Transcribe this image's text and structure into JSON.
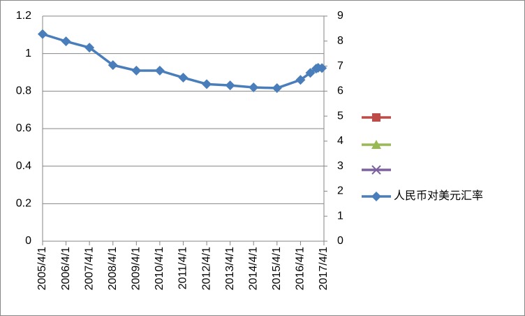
{
  "chart_data": {
    "type": "line",
    "x": [
      "2005/4/1",
      "2006/4/1",
      "2007/4/1",
      "2008/4/1",
      "2009/4/1",
      "2010/4/1",
      "2011/4/1",
      "2012/4/1",
      "2013/4/1",
      "2014/4/1",
      "2015/4/1",
      "2016/4/1",
      "2016/9/1",
      "2016/12/1",
      "2017/1/1",
      "2017/3/1"
    ],
    "xlim": [
      "2005/4/1",
      "2017/4/1"
    ],
    "xticks": [
      "2005/4/1",
      "2006/4/1",
      "2007/4/1",
      "2008/4/1",
      "2009/4/1",
      "2010/4/1",
      "2011/4/1",
      "2012/4/1",
      "2013/4/1",
      "2014/4/1",
      "2015/4/1",
      "2016/4/1",
      "2017/4/1"
    ],
    "ylim": [
      0,
      1.2
    ],
    "yticks": [
      0,
      0.2,
      0.4,
      0.6,
      0.8,
      1,
      1.2
    ],
    "y2lim": [
      0,
      9
    ],
    "y2ticks": [
      0,
      1,
      2,
      3,
      4,
      5,
      6,
      7,
      8,
      9
    ],
    "grid": true,
    "legend": "right",
    "series": [
      {
        "color": "#be4b48",
        "marker": "square",
        "values": [
          null,
          null,
          null,
          null,
          null,
          null,
          null,
          null,
          null,
          null,
          null,
          null,
          null,
          null,
          null,
          null
        ]
      },
      {
        "color": "#98b954",
        "marker": "triangle",
        "values": [
          null,
          null,
          null,
          null,
          null,
          null,
          null,
          null,
          null,
          null,
          null,
          null,
          null,
          null,
          null,
          null
        ]
      },
      {
        "color": "#7d60a0",
        "marker": "x",
        "values": [
          null,
          null,
          null,
          null,
          null,
          null,
          null,
          null,
          null,
          null,
          null,
          null,
          null,
          null,
          null,
          null
        ]
      },
      {
        "name": "人民币对美元汇率",
        "color": "#4a7ebb",
        "marker": "diamond",
        "axis": "y2",
        "values": [
          8.28,
          7.99,
          7.74,
          7.04,
          6.82,
          6.82,
          6.54,
          6.28,
          6.23,
          6.15,
          6.12,
          6.45,
          6.73,
          6.9,
          6.93,
          6.92
        ]
      }
    ]
  }
}
